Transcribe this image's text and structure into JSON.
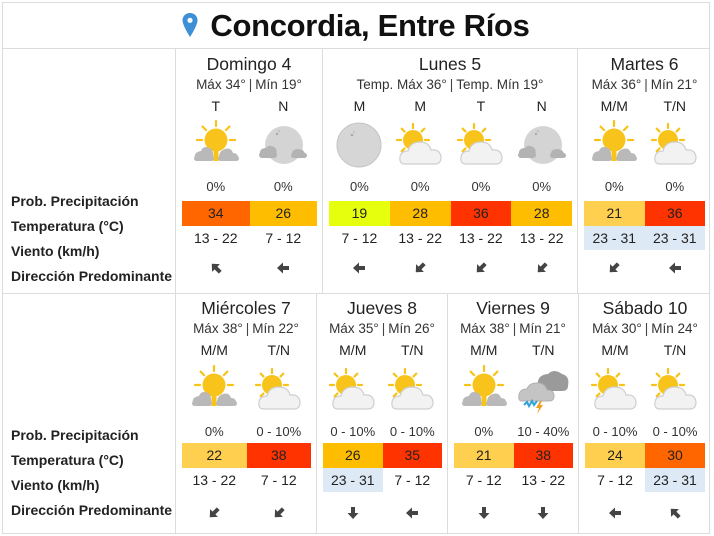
{
  "header": {
    "location": "Concordia, Entre Ríos",
    "icon": "map-pin-icon",
    "pin_color": "#3d8fd6"
  },
  "labels": {
    "precip": "Prob. Precipitación",
    "temp": "Temperatura (°C)",
    "wind": "Viento (km/h)",
    "direction": "Dirección Predominante"
  },
  "temp_colors": {
    "19": "#e6ff0d",
    "21": "#ffcf4f",
    "22": "#ffcf4f",
    "24": "#ffcf4f",
    "26": "#ffbd00",
    "28": "#ffbd00",
    "30": "#ff6600",
    "34": "#ff6600",
    "35": "#ff3300",
    "36": "#ff3300",
    "38": "#ff3300"
  },
  "strong_wind_color": "#dde9f5",
  "days": [
    {
      "title": "Domingo 4",
      "max": "Máx 34°",
      "min": "Mín 19°",
      "periods": [
        {
          "label": "T",
          "icon": "sun-cloud-gray-icon",
          "precip": "0%",
          "temp": "34",
          "wind": "13 - 22",
          "wind_strong": false,
          "direction": "northwest-arrow-icon"
        },
        {
          "label": "N",
          "icon": "moon-cloud-icon",
          "precip": "0%",
          "temp": "26",
          "wind": "7 - 12",
          "wind_strong": false,
          "direction": "west-arrow-icon"
        }
      ]
    },
    {
      "title": "Lunes 5",
      "max": "Temp. Máx 36°",
      "min": "Temp. Mín 19°",
      "periods": [
        {
          "label": "M",
          "icon": "moon-clear-icon",
          "precip": "0%",
          "temp": "19",
          "wind": "7 - 12",
          "wind_strong": false,
          "direction": "west-arrow-icon"
        },
        {
          "label": "M",
          "icon": "sun-cloud-white-icon",
          "precip": "0%",
          "temp": "28",
          "wind": "13 - 22",
          "wind_strong": false,
          "direction": "southwest-arrow-icon"
        },
        {
          "label": "T",
          "icon": "sun-cloud-white-icon",
          "precip": "0%",
          "temp": "36",
          "wind": "13 - 22",
          "wind_strong": false,
          "direction": "southwest-arrow-icon"
        },
        {
          "label": "N",
          "icon": "moon-cloud-icon",
          "precip": "0%",
          "temp": "28",
          "wind": "13 - 22",
          "wind_strong": false,
          "direction": "southwest-arrow-icon"
        }
      ]
    },
    {
      "title": "Martes 6",
      "max": "Máx 36°",
      "min": "Mín 21°",
      "periods": [
        {
          "label": "M/M",
          "icon": "sun-cloud-gray-icon",
          "precip": "0%",
          "temp": "21",
          "wind": "23 - 31",
          "wind_strong": true,
          "direction": "southwest-arrow-icon"
        },
        {
          "label": "T/N",
          "icon": "sun-cloud-white-icon",
          "precip": "0%",
          "temp": "36",
          "wind": "23 - 31",
          "wind_strong": true,
          "direction": "west-arrow-icon"
        }
      ]
    },
    {
      "title": "Miércoles 7",
      "max": "Máx 38°",
      "min": "Mín 22°",
      "periods": [
        {
          "label": "M/M",
          "icon": "sun-cloud-gray-icon",
          "precip": "0%",
          "temp": "22",
          "wind": "13 - 22",
          "wind_strong": false,
          "direction": "southwest-arrow-icon"
        },
        {
          "label": "T/N",
          "icon": "sun-cloud-white-icon",
          "precip": "0 - 10%",
          "temp": "38",
          "wind": "7 - 12",
          "wind_strong": false,
          "direction": "southwest-arrow-icon"
        }
      ]
    },
    {
      "title": "Jueves 8",
      "max": "Máx 35°",
      "min": "Mín 26°",
      "periods": [
        {
          "label": "M/M",
          "icon": "sun-cloud-white-icon",
          "precip": "0 - 10%",
          "temp": "26",
          "wind": "23 - 31",
          "wind_strong": true,
          "direction": "south-arrow-icon"
        },
        {
          "label": "T/N",
          "icon": "sun-cloud-white-icon",
          "precip": "0 - 10%",
          "temp": "35",
          "wind": "7 - 12",
          "wind_strong": false,
          "direction": "west-arrow-icon"
        }
      ]
    },
    {
      "title": "Viernes 9",
      "max": "Máx 38°",
      "min": "Mín 21°",
      "periods": [
        {
          "label": "M/M",
          "icon": "sun-cloud-gray-icon",
          "precip": "0%",
          "temp": "21",
          "wind": "7 - 12",
          "wind_strong": false,
          "direction": "south-arrow-icon"
        },
        {
          "label": "T/N",
          "icon": "thunderstorm-icon",
          "precip": "10 - 40%",
          "temp": "38",
          "wind": "13 - 22",
          "wind_strong": false,
          "direction": "south-arrow-icon"
        }
      ]
    },
    {
      "title": "Sábado 10",
      "max": "Máx 30°",
      "min": "Mín 24°",
      "periods": [
        {
          "label": "M/M",
          "icon": "sun-cloud-white-icon",
          "precip": "0 - 10%",
          "temp": "24",
          "wind": "7 - 12",
          "wind_strong": false,
          "direction": "west-arrow-icon"
        },
        {
          "label": "T/N",
          "icon": "sun-cloud-white-icon",
          "precip": "0 - 10%",
          "temp": "30",
          "wind": "23 - 31",
          "wind_strong": true,
          "direction": "northwest-arrow-icon"
        }
      ]
    }
  ]
}
